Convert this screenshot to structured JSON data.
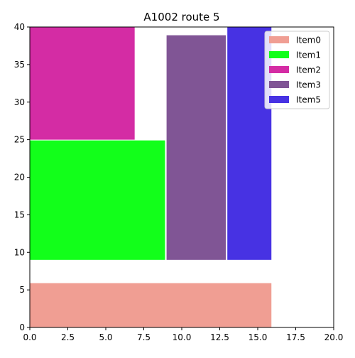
{
  "chart_data": {
    "type": "bar",
    "title": "A1002 route 5",
    "xlabel": "",
    "ylabel": "",
    "xlim": [
      0,
      20
    ],
    "ylim": [
      0,
      40
    ],
    "x_ticks": [
      "0.0",
      "2.5",
      "5.0",
      "7.5",
      "10.0",
      "12.5",
      "15.0",
      "17.5",
      "20.0"
    ],
    "y_ticks": [
      "0",
      "5",
      "10",
      "15",
      "20",
      "25",
      "30",
      "35",
      "40"
    ],
    "grid": false,
    "legend_placement": "top-right",
    "series": [
      {
        "name": "Item0",
        "color": "#f09e93",
        "x0": 0,
        "x1": 15.9,
        "y0": 0,
        "y1": 5.9
      },
      {
        "name": "Item1",
        "color": "#12ff1a",
        "x0": 0,
        "x1": 8.9,
        "y0": 9,
        "y1": 24.9
      },
      {
        "name": "Item2",
        "color": "#d42ca4",
        "x0": 0,
        "x1": 6.9,
        "y0": 25,
        "y1": 40
      },
      {
        "name": "Item3",
        "color": "#805595",
        "x0": 9,
        "x1": 12.9,
        "y0": 9,
        "y1": 38.9
      },
      {
        "name": "Item5",
        "color": "#4732e3",
        "x0": 13,
        "x1": 15.9,
        "y0": 9,
        "y1": 40
      }
    ]
  }
}
